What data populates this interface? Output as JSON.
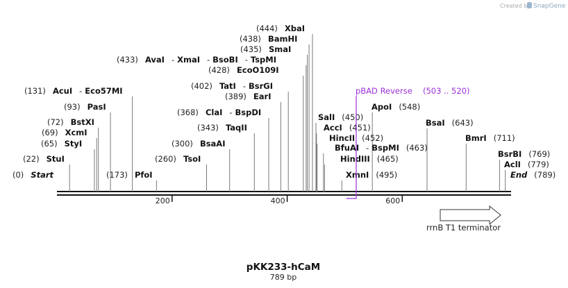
{
  "watermark": {
    "prefix": "Created by",
    "brand": "SnapGene"
  },
  "plasmid": {
    "name": "pKK233-hCaM",
    "length_label": "789 bp",
    "length": 789
  },
  "colors": {
    "accent": "#9b30d9",
    "text": "#111111",
    "line": "#888888",
    "backbone": "#111111"
  },
  "ticks": [
    {
      "value": 200,
      "label": "200"
    },
    {
      "value": 400,
      "label": "400"
    },
    {
      "value": 600,
      "label": "600"
    }
  ],
  "sites": [
    {
      "key": "start",
      "pos": 0,
      "pos_label": "(0)",
      "names": [
        "Start"
      ],
      "italic": true
    },
    {
      "key": "stui",
      "pos": 22,
      "pos_label": "(22)",
      "names": [
        "StuI"
      ]
    },
    {
      "key": "styi",
      "pos": 65,
      "pos_label": "(65)",
      "names": [
        "StyI"
      ]
    },
    {
      "key": "xcmi",
      "pos": 69,
      "pos_label": "(69)",
      "names": [
        "XcmI"
      ]
    },
    {
      "key": "bstxi",
      "pos": 72,
      "pos_label": "(72)",
      "names": [
        "BstXI"
      ]
    },
    {
      "key": "pasi",
      "pos": 93,
      "pos_label": "(93)",
      "names": [
        "PasI"
      ]
    },
    {
      "key": "acui",
      "pos": 131,
      "pos_label": "(131)",
      "names": [
        "AcuI",
        "Eco57MI"
      ]
    },
    {
      "key": "pfoi",
      "pos": 173,
      "pos_label": "(173)",
      "names": [
        "PfoI"
      ]
    },
    {
      "key": "tsoi",
      "pos": 260,
      "pos_label": "(260)",
      "names": [
        "TsoI"
      ]
    },
    {
      "key": "bsaai",
      "pos": 300,
      "pos_label": "(300)",
      "names": [
        "BsaAI"
      ]
    },
    {
      "key": "taqii",
      "pos": 343,
      "pos_label": "(343)",
      "names": [
        "TaqII"
      ]
    },
    {
      "key": "clai",
      "pos": 368,
      "pos_label": "(368)",
      "names": [
        "ClaI",
        "BspDI"
      ]
    },
    {
      "key": "eari",
      "pos": 389,
      "pos_label": "(389)",
      "names": [
        "EarI"
      ]
    },
    {
      "key": "tati",
      "pos": 402,
      "pos_label": "(402)",
      "names": [
        "TatI",
        "BsrGI"
      ]
    },
    {
      "key": "ecoo",
      "pos": 428,
      "pos_label": "(428)",
      "names": [
        "EcoO109I"
      ]
    },
    {
      "key": "avai",
      "pos": 433,
      "pos_label": "(433)",
      "names": [
        "AvaI",
        "XmaI",
        "BsoBI",
        "TspMI"
      ]
    },
    {
      "key": "smai",
      "pos": 435,
      "pos_label": "(435)",
      "names": [
        "SmaI"
      ]
    },
    {
      "key": "bamhi",
      "pos": 438,
      "pos_label": "(438)",
      "names": [
        "BamHI"
      ]
    },
    {
      "key": "xbai",
      "pos": 444,
      "pos_label": "(444)",
      "names": [
        "XbaI"
      ]
    },
    {
      "key": "sali",
      "pos": 450,
      "pos_label": "(450)",
      "names": [
        "SalI"
      ]
    },
    {
      "key": "acci",
      "pos": 451,
      "pos_label": "(451)",
      "names": [
        "AccI"
      ]
    },
    {
      "key": "hincii",
      "pos": 452,
      "pos_label": "(452)",
      "names": [
        "HincII"
      ]
    },
    {
      "key": "bfuai",
      "pos": 463,
      "pos_label": "(463)",
      "names": [
        "BfuAI",
        "BspMI"
      ]
    },
    {
      "key": "hindiii",
      "pos": 465,
      "pos_label": "(465)",
      "names": [
        "HindIII"
      ]
    },
    {
      "key": "xmni",
      "pos": 495,
      "pos_label": "(495)",
      "names": [
        "XmnI"
      ]
    },
    {
      "key": "apoi",
      "pos": 548,
      "pos_label": "(548)",
      "names": [
        "ApoI"
      ]
    },
    {
      "key": "bsai",
      "pos": 643,
      "pos_label": "(643)",
      "names": [
        "BsaI"
      ]
    },
    {
      "key": "bmri",
      "pos": 711,
      "pos_label": "(711)",
      "names": [
        "BmrI"
      ]
    },
    {
      "key": "bsrbi",
      "pos": 769,
      "pos_label": "(769)",
      "names": [
        "BsrBI"
      ]
    },
    {
      "key": "acli",
      "pos": 779,
      "pos_label": "(779)",
      "names": [
        "AclI"
      ]
    },
    {
      "key": "end",
      "pos": 789,
      "pos_label": "(789)",
      "names": [
        "End"
      ],
      "italic": true
    }
  ],
  "primer": {
    "name": "pBAD Reverse",
    "range_label": "(503 .. 520)",
    "start": 503,
    "end": 520
  },
  "features": [
    {
      "name": "rrnB T1 terminator",
      "start": 666,
      "end": 771,
      "direction": "forward"
    }
  ]
}
